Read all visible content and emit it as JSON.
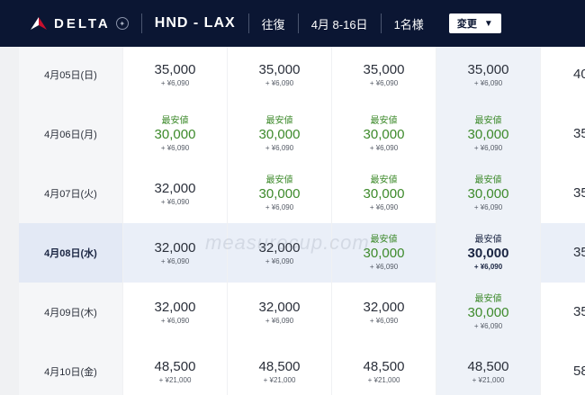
{
  "header": {
    "brand": "DELTA",
    "route": "HND - LAX",
    "trip_type": "往復",
    "dates": "4月 8-16日",
    "passengers": "1名様",
    "change_label": "変更",
    "colors": {
      "background": "#0b1633",
      "text": "#ffffff"
    }
  },
  "grid": {
    "lowest_label": "最安値",
    "rows": [
      {
        "date": "4月05日(日)",
        "cells": [
          {
            "price": "35,000",
            "tax": "+ ¥6,090",
            "low": false
          },
          {
            "price": "35,000",
            "tax": "+ ¥6,090",
            "low": false
          },
          {
            "price": "35,000",
            "tax": "+ ¥6,090",
            "low": false
          },
          {
            "price": "35,000",
            "tax": "+ ¥6,090",
            "low": false
          },
          {
            "price": "40",
            "tax": "",
            "low": false
          }
        ]
      },
      {
        "date": "4月06日(月)",
        "cells": [
          {
            "price": "30,000",
            "tax": "+ ¥6,090",
            "low": true
          },
          {
            "price": "30,000",
            "tax": "+ ¥6,090",
            "low": true
          },
          {
            "price": "30,000",
            "tax": "+ ¥6,090",
            "low": true
          },
          {
            "price": "30,000",
            "tax": "+ ¥6,090",
            "low": true
          },
          {
            "price": "35,",
            "tax": "",
            "low": false
          }
        ]
      },
      {
        "date": "4月07日(火)",
        "cells": [
          {
            "price": "32,000",
            "tax": "+ ¥6,090",
            "low": false
          },
          {
            "price": "30,000",
            "tax": "+ ¥6,090",
            "low": true
          },
          {
            "price": "30,000",
            "tax": "+ ¥6,090",
            "low": true
          },
          {
            "price": "30,000",
            "tax": "+ ¥6,090",
            "low": true
          },
          {
            "price": "35,",
            "tax": "",
            "low": false
          }
        ]
      },
      {
        "date": "4月08日(水)",
        "selected": true,
        "cells": [
          {
            "price": "32,000",
            "tax": "+ ¥6,090",
            "low": false
          },
          {
            "price": "32,000",
            "tax": "+ ¥6,090",
            "low": false
          },
          {
            "price": "30,000",
            "tax": "+ ¥6,090",
            "low": true
          },
          {
            "price": "30,000",
            "tax": "+ ¥6,090",
            "low": true
          },
          {
            "price": "35,",
            "tax": "",
            "low": false
          }
        ]
      },
      {
        "date": "4月09日(木)",
        "cells": [
          {
            "price": "32,000",
            "tax": "+ ¥6,090",
            "low": false
          },
          {
            "price": "32,000",
            "tax": "+ ¥6,090",
            "low": false
          },
          {
            "price": "32,000",
            "tax": "+ ¥6,090",
            "low": false
          },
          {
            "price": "30,000",
            "tax": "+ ¥6,090",
            "low": true
          },
          {
            "price": "35,",
            "tax": "",
            "low": false
          }
        ]
      },
      {
        "date": "4月10日(金)",
        "cells": [
          {
            "price": "48,500",
            "tax": "+ ¥21,000",
            "low": false
          },
          {
            "price": "48,500",
            "tax": "+ ¥21,000",
            "low": false
          },
          {
            "price": "48,500",
            "tax": "+ ¥21,000",
            "low": false
          },
          {
            "price": "48,500",
            "tax": "+ ¥21,000",
            "low": false
          },
          {
            "price": "58",
            "tax": "",
            "low": false
          }
        ]
      }
    ]
  }
}
